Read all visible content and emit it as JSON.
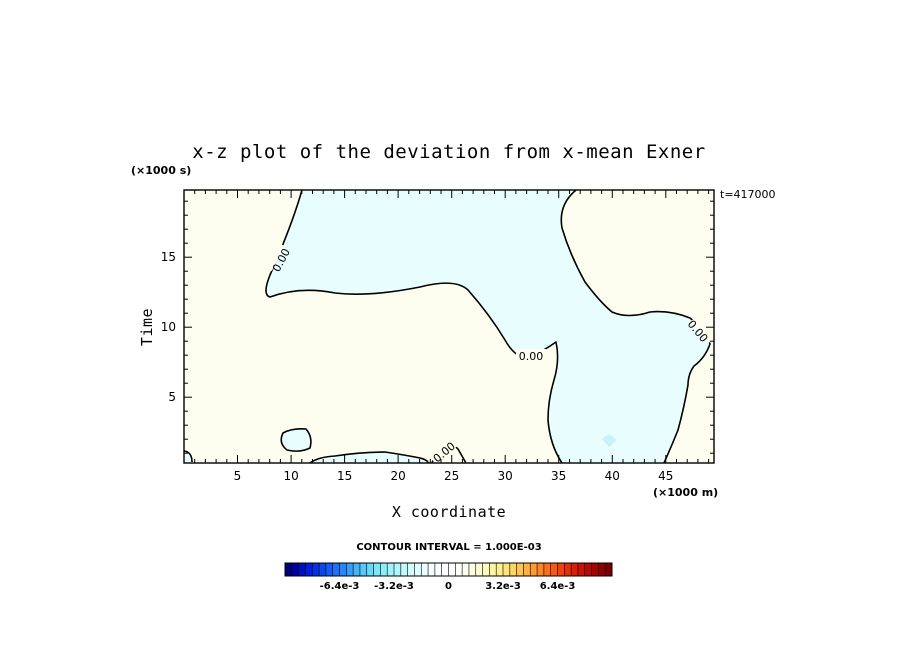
{
  "chart_data": {
    "type": "contour",
    "title": "x-z plot of the deviation from x-mean Exner",
    "xlabel": "X coordinate",
    "ylabel": "Time",
    "x_unit": "(×1000 m)",
    "y_unit": "(×1000 s)",
    "time_stamp": "t=417000",
    "xlim": [
      0,
      49.5
    ],
    "ylim": [
      0.3,
      19.8
    ],
    "x_ticks": [
      5,
      10,
      15,
      20,
      25,
      30,
      35,
      40,
      45
    ],
    "y_ticks": [
      5,
      10,
      15
    ],
    "contour_interval_text": "CONTOUR INTERVAL = 1.000E-03",
    "contour_labels": [
      "0.00",
      "0.00",
      "0.00",
      "0.00"
    ],
    "colors": {
      "positive_fill": "#fdfdf0",
      "negative_fill": "#e8fdfd",
      "negative_patch": "#c8f2f6",
      "contour_line": "#000000"
    },
    "colorbar": {
      "labels": [
        "-6.4e-3",
        "-3.2e-3",
        "0",
        "3.2e-3",
        "6.4e-3"
      ],
      "label_values": [
        -0.0064,
        -0.0032,
        0,
        0.0032,
        0.0064
      ],
      "range": [
        -0.0096,
        0.0096
      ],
      "n_levels": 48,
      "colors": [
        "#00007a",
        "#0000a0",
        "#0010c0",
        "#0020d8",
        "#0032e6",
        "#0846ee",
        "#145cf2",
        "#1e70f4",
        "#2a86f6",
        "#389cf8",
        "#48b2f8",
        "#58c6f8",
        "#68d8f8",
        "#7ae6f8",
        "#8ceef8",
        "#9ef2f8",
        "#b0f6fa",
        "#c2f8fa",
        "#d2fafc",
        "#e0fcfc",
        "#ecfdfd",
        "#f4fefe",
        "#fbfefe",
        "#ffffff",
        "#ffffff",
        "#fffffa",
        "#fefef0",
        "#fefde2",
        "#fefcd0",
        "#fefabc",
        "#fef6a4",
        "#feee8c",
        "#fee478",
        "#fed664",
        "#fec452",
        "#feb042",
        "#fe9a34",
        "#fe8428",
        "#fc6e1e",
        "#f85816",
        "#f04210",
        "#e42e0c",
        "#d61e08",
        "#c81206",
        "#b80a04",
        "#a40402",
        "#900000",
        "#780000"
      ]
    }
  }
}
